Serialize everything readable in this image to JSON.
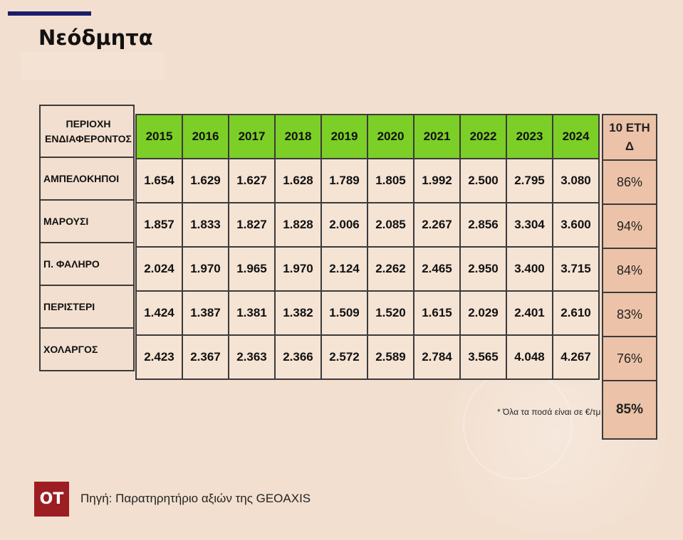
{
  "page": {
    "title": "Νεόδμητα",
    "source": "Πηγή: Παρατηρητήριο αξιών της GEOAXIS",
    "logo_text": "OT",
    "note": "* Όλα τα ποσά είναι σε €/τμ"
  },
  "colors": {
    "background": "#f2dfcf",
    "header_green": "#7ccf27",
    "delta_column": "#ecc3a8",
    "logo": "#9c1d22",
    "top_bar": "#1b1d6b"
  },
  "table": {
    "region_header": [
      "ΠΕΡΙΟΧΗ",
      "ΕΝΔΙΑΦΕΡΟΝΤΟΣ"
    ],
    "years": [
      "2015",
      "2016",
      "2017",
      "2018",
      "2019",
      "2020",
      "2021",
      "2022",
      "2023",
      "2024"
    ],
    "delta_header": [
      "10 ΕΤΗ",
      "Δ"
    ],
    "rows": [
      {
        "region": "ΑΜΠΕΛΟΚΗΠΟΙ",
        "values": [
          "1.654",
          "1.629",
          "1.627",
          "1.628",
          "1.789",
          "1.805",
          "1.992",
          "2.500",
          "2.795",
          "3.080"
        ],
        "delta": "86%"
      },
      {
        "region": "ΜΑΡΟΥΣΙ",
        "values": [
          "1.857",
          "1.833",
          "1.827",
          "1.828",
          "2.006",
          "2.085",
          "2.267",
          "2.856",
          "3.304",
          "3.600"
        ],
        "delta": "94%"
      },
      {
        "region": "Π. ΦΑΛΗΡΟ",
        "values": [
          "2.024",
          "1.970",
          "1.965",
          "1.970",
          "2.124",
          "2.262",
          "2.465",
          "2.950",
          "3.400",
          "3.715"
        ],
        "delta": "84%"
      },
      {
        "region": "ΠΕΡΙΣΤΕΡΙ",
        "values": [
          "1.424",
          "1.387",
          "1.381",
          "1.382",
          "1.509",
          "1.520",
          "1.615",
          "2.029",
          "2.401",
          "2.610"
        ],
        "delta": "83%"
      },
      {
        "region": "ΧΟΛΑΡΓΟΣ",
        "values": [
          "2.423",
          "2.367",
          "2.363",
          "2.366",
          "2.572",
          "2.589",
          "2.784",
          "3.565",
          "4.048",
          "4.267"
        ],
        "delta": "76%"
      }
    ],
    "average_delta": "85%"
  }
}
